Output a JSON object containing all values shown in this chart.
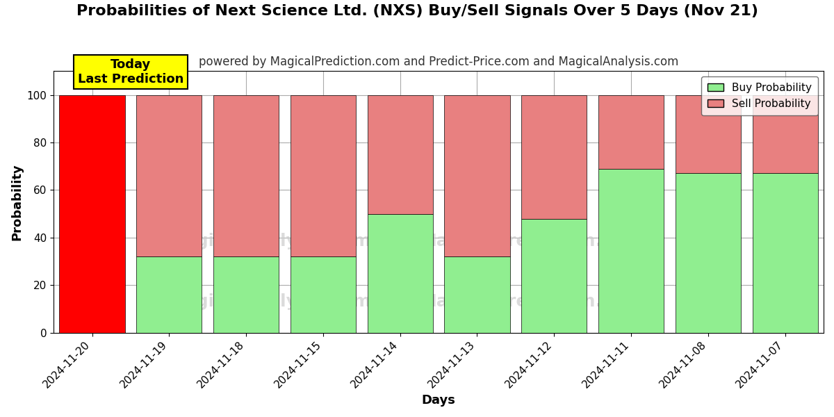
{
  "title": "Probabilities of Next Science Ltd. (NXS) Buy/Sell Signals Over 5 Days (Nov 21)",
  "subtitle": "powered by MagicalPrediction.com and Predict-Price.com and MagicalAnalysis.com",
  "xlabel": "Days",
  "ylabel": "Probability",
  "categories": [
    "2024-11-20",
    "2024-11-19",
    "2024-11-18",
    "2024-11-15",
    "2024-11-14",
    "2024-11-13",
    "2024-11-12",
    "2024-11-11",
    "2024-11-08",
    "2024-11-07"
  ],
  "buy_values": [
    0,
    32,
    32,
    32,
    50,
    32,
    48,
    69,
    67,
    67
  ],
  "sell_values": [
    100,
    68,
    68,
    68,
    50,
    68,
    52,
    31,
    33,
    33
  ],
  "buy_color": "#90EE90",
  "sell_color": "#E88080",
  "today_bar_color": "#FF0000",
  "bar_edge_color": "#000000",
  "bar_edge_width": 0.5,
  "ylim_max": 110,
  "yticks": [
    0,
    20,
    40,
    60,
    80,
    100
  ],
  "dashed_line_y": 110,
  "legend_buy_label": "Buy Probability",
  "legend_sell_label": "Sell Probability",
  "today_box_text": "Today\nLast Prediction",
  "today_box_facecolor": "#FFFF00",
  "today_box_edgecolor": "#000000",
  "watermark_color": "#cccccc",
  "grid_color": "#aaaaaa",
  "background_color": "#ffffff",
  "title_fontsize": 16,
  "subtitle_fontsize": 12,
  "axis_label_fontsize": 13,
  "tick_fontsize": 11,
  "legend_fontsize": 11,
  "bar_width": 0.85
}
